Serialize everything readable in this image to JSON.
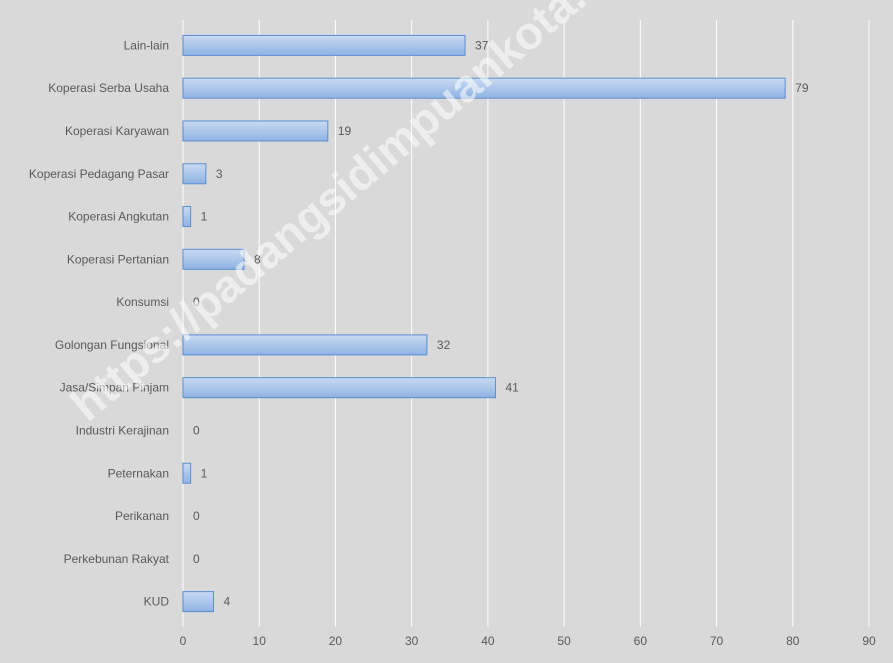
{
  "watermark": "https://padangsidimpuankota.bps.go.id",
  "colors": {
    "background": "#d9d9d9",
    "grid": "#ffffff",
    "bar_fill_top": "#c9daf2",
    "bar_fill_bottom": "#8fb3e3",
    "bar_stroke": "#5b8fd0",
    "text": "#595959"
  },
  "chart_data": {
    "type": "bar",
    "orientation": "horizontal",
    "categories": [
      "Lain-lain",
      "Koperasi Serba Usaha",
      "Koperasi Karyawan",
      "Koperasi Pedagang Pasar",
      "Koperasi Angkutan",
      "Koperasi Pertanian",
      "Konsumsi",
      "Golongan Fungsional",
      "Jasa/Simpan Pinjam",
      "Industri Kerajinan",
      "Peternakan",
      "Perikanan",
      "Perkebunan Rakyat",
      "KUD"
    ],
    "values": [
      37,
      79,
      19,
      3,
      1,
      8,
      0,
      32,
      41,
      0,
      1,
      0,
      0,
      4
    ],
    "xlim": [
      0,
      90
    ],
    "xticks": [
      0,
      10,
      20,
      30,
      40,
      50,
      60,
      70,
      80,
      90
    ],
    "title": "",
    "xlabel": "",
    "ylabel": "",
    "grid": true,
    "legend": "none",
    "data_labels": true
  }
}
